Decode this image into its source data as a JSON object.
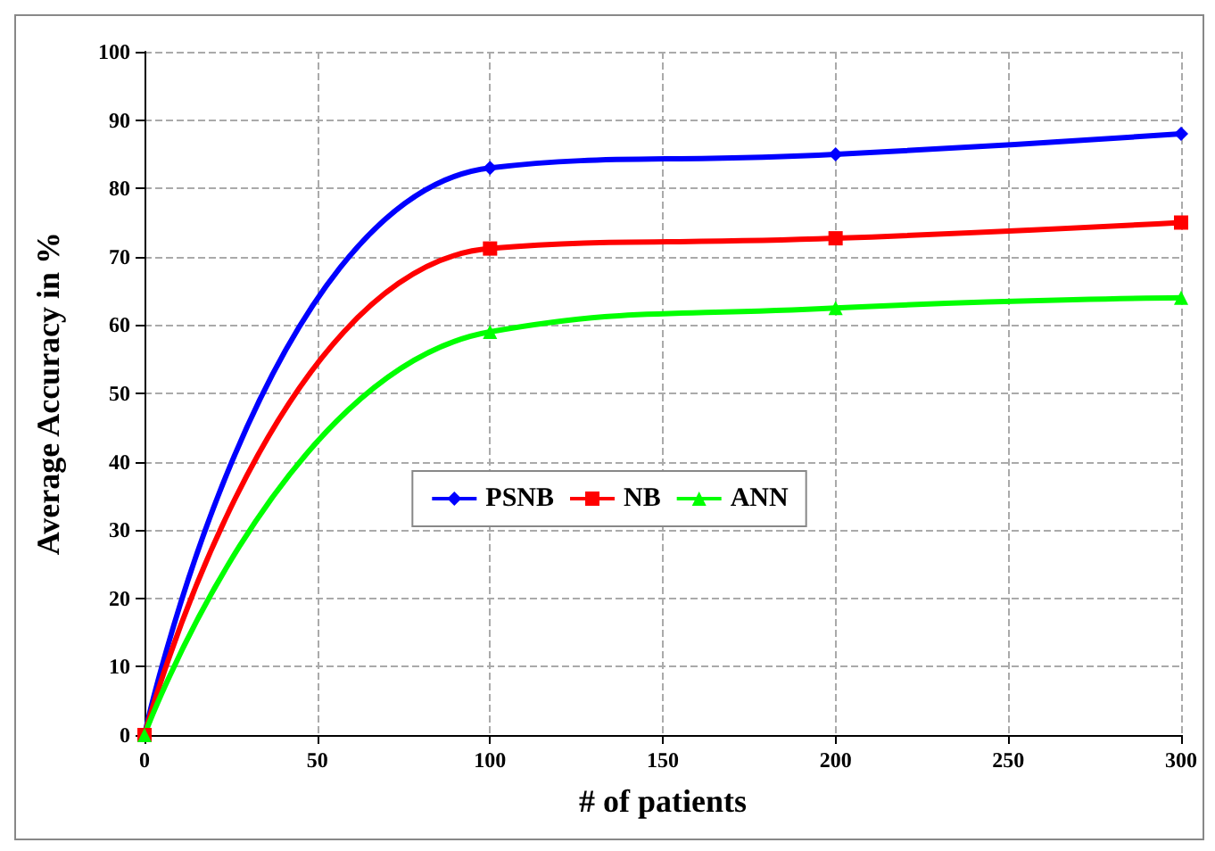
{
  "chart_data": {
    "type": "line",
    "xlabel": "# of patients",
    "ylabel": "Average Accuracy in %",
    "x": [
      0,
      100,
      200,
      300
    ],
    "series": [
      {
        "name": "PSNB",
        "color": "#0000ff",
        "marker": "diamond",
        "values": [
          0,
          83,
          85,
          88
        ]
      },
      {
        "name": "NB",
        "color": "#ff0000",
        "marker": "square",
        "values": [
          0,
          71.2,
          72.7,
          75
        ]
      },
      {
        "name": "ANN",
        "color": "#00ff00",
        "marker": "triangle",
        "values": [
          0,
          59,
          62.5,
          64
        ]
      }
    ],
    "xlim": [
      0,
      300
    ],
    "xticks": [
      0,
      50,
      100,
      150,
      200,
      250,
      300
    ],
    "ylim": [
      0,
      100
    ],
    "yticks": [
      0,
      10,
      20,
      30,
      40,
      50,
      60,
      70,
      80,
      90,
      100
    ],
    "grid": true,
    "legend": "center"
  }
}
